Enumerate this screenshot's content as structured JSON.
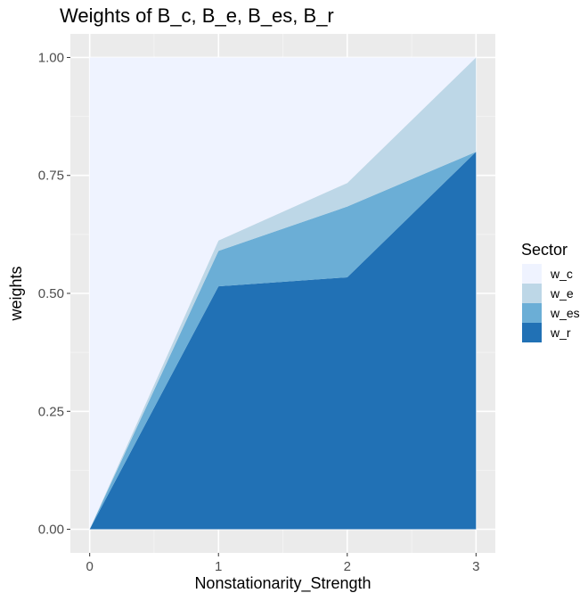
{
  "chart_data": {
    "type": "area",
    "stacked": true,
    "title": "Weights of B_c, B_e, B_es, B_r",
    "xlabel": "Nonstationarity_Strength",
    "ylabel": "weights",
    "x": [
      0,
      1,
      2,
      3
    ],
    "x_ticks": [
      "0",
      "1",
      "2",
      "3"
    ],
    "y_ticks": [
      "0.00",
      "0.25",
      "0.50",
      "0.75",
      "1.00"
    ],
    "xlim": [
      -0.15,
      3.15
    ],
    "ylim": [
      -0.05,
      1.05
    ],
    "grid": true,
    "legend": {
      "title": "Sector",
      "position": "right"
    },
    "series": [
      {
        "name": "w_c",
        "color": "#eff3ff",
        "values": [
          1.0,
          0.388,
          0.266,
          0.0
        ]
      },
      {
        "name": "w_e",
        "color": "#bdd7e7",
        "values": [
          0.0,
          0.022,
          0.05,
          0.2
        ]
      },
      {
        "name": "w_es",
        "color": "#6baed6",
        "values": [
          0.0,
          0.075,
          0.15,
          0.0
        ]
      },
      {
        "name": "w_r",
        "color": "#2171b5",
        "values": [
          0.0,
          0.515,
          0.534,
          0.8
        ]
      }
    ]
  }
}
